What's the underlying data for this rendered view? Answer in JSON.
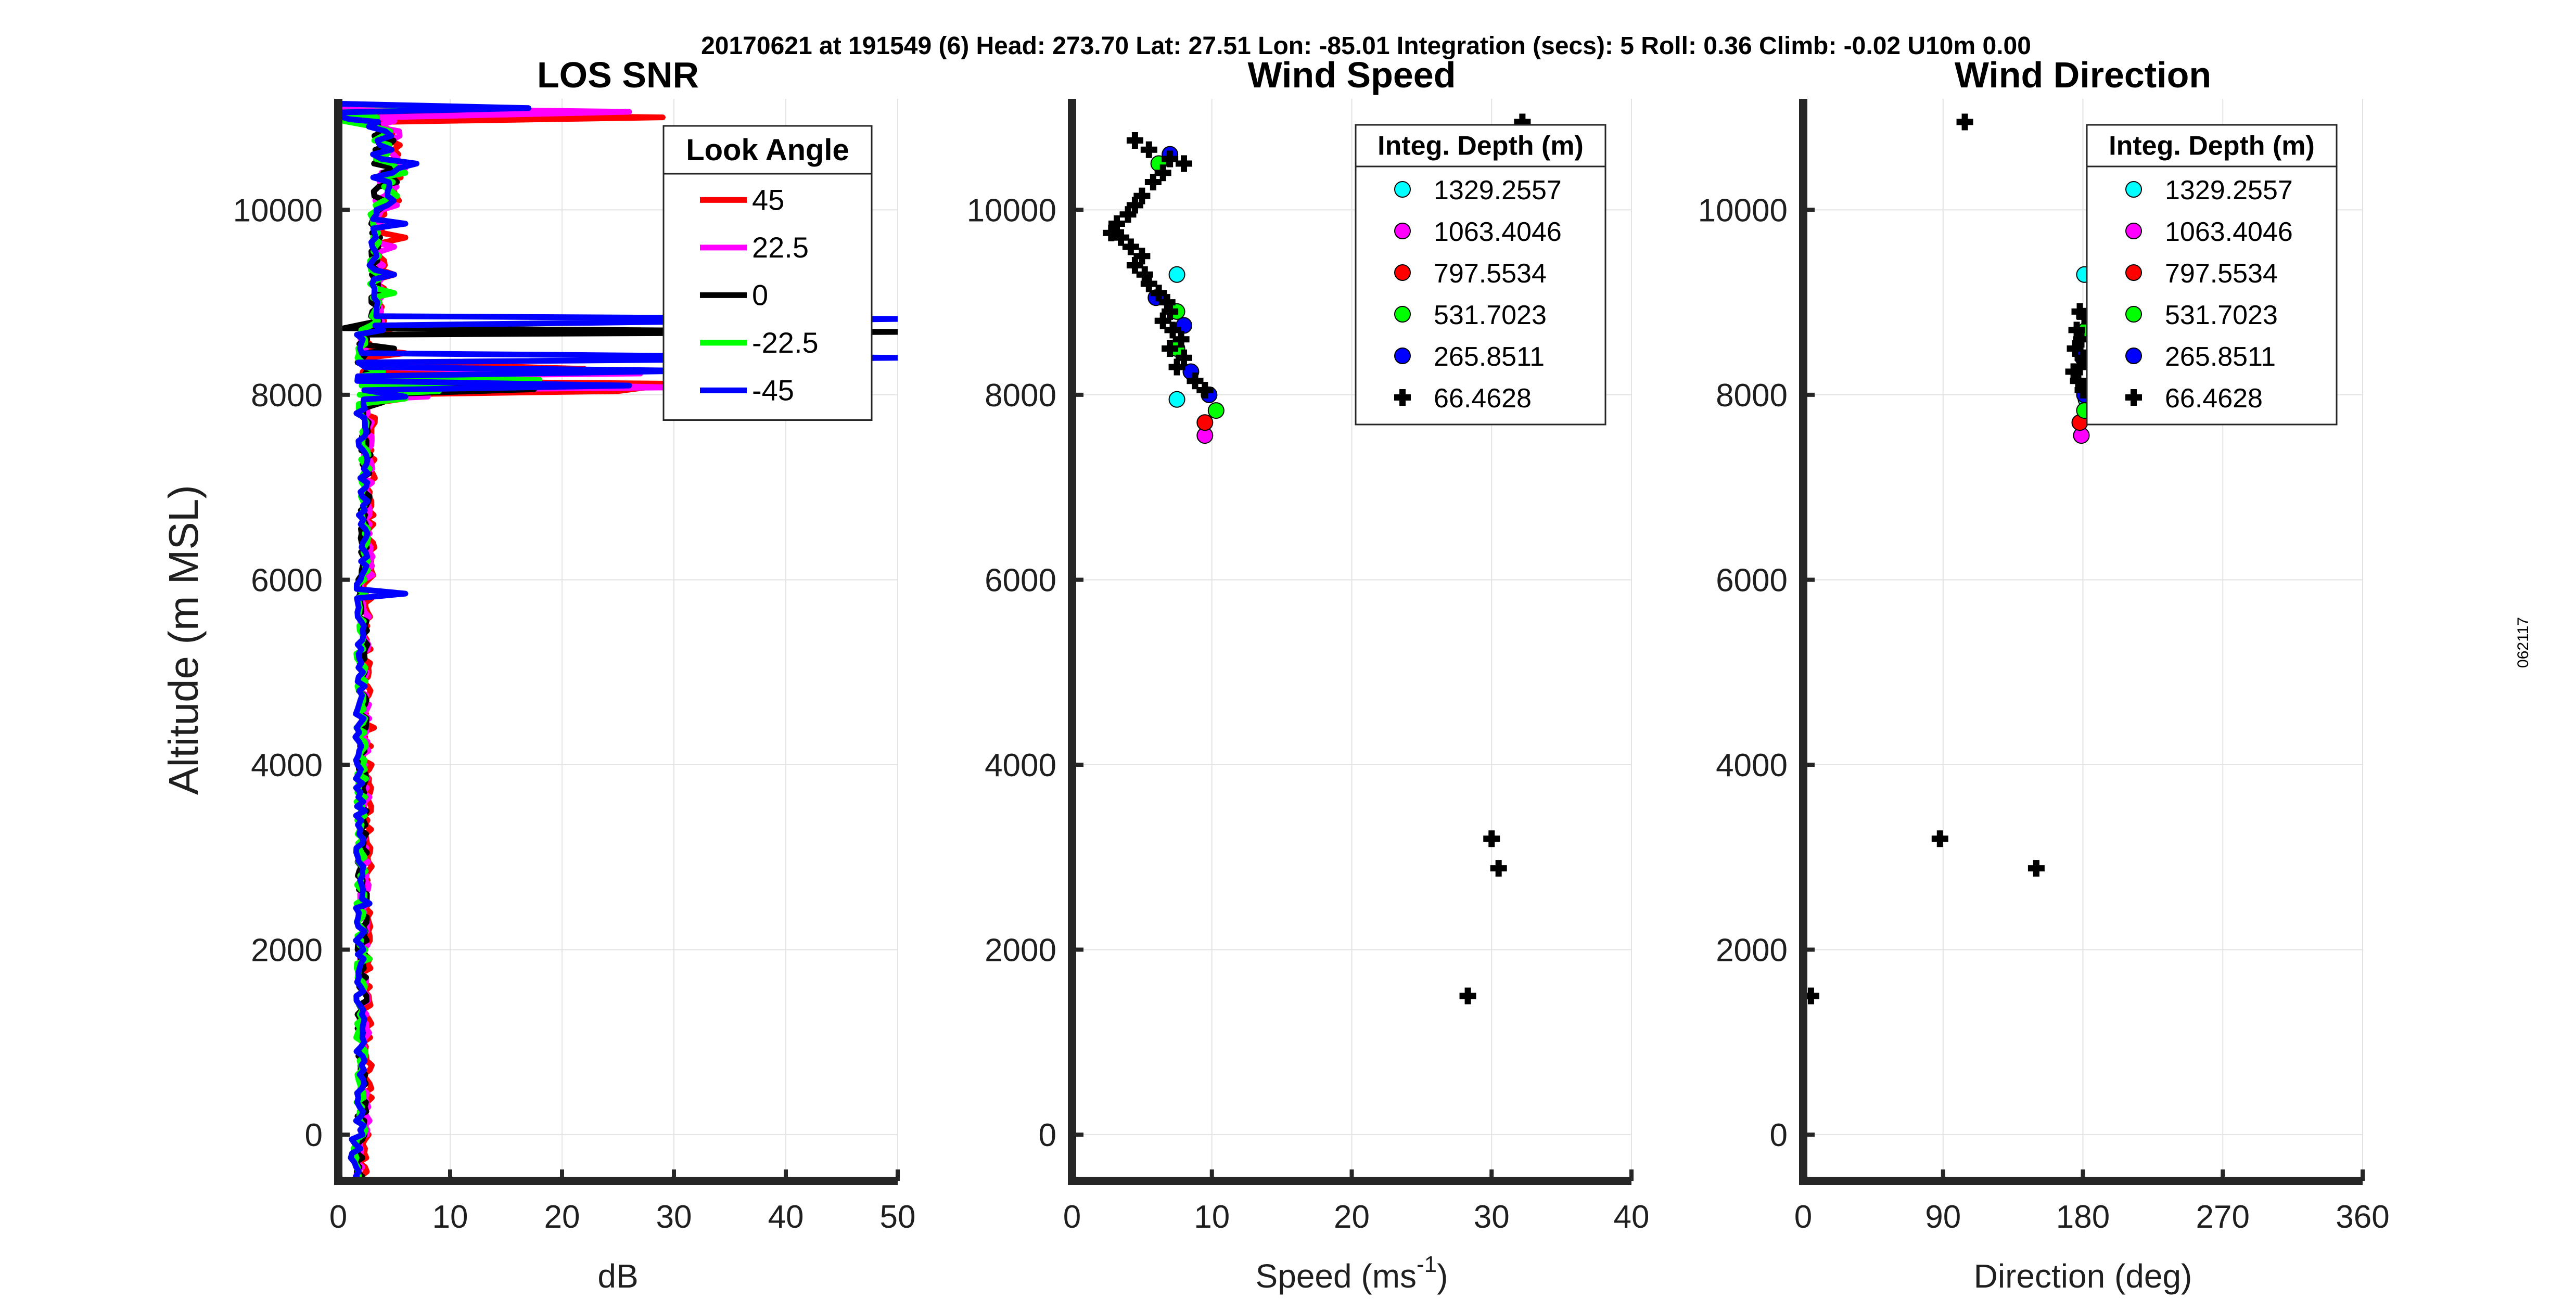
{
  "figure": {
    "suptitle": "20170621 at 191549 (6)  Head: 273.70  Lat: 27.51  Lon: -85.01  Integration (secs): 5  Roll: 0.36  Climb: -0.02  U10m 0.00",
    "side_label": "062117"
  },
  "chart_data": [
    {
      "type": "line",
      "title": "LOS SNR",
      "xlabel": "dB",
      "ylabel": "Altitude (m MSL)",
      "xlim": [
        0,
        50
      ],
      "ylim": [
        -500,
        11200
      ],
      "xticks": [
        0,
        10,
        20,
        30,
        40,
        50
      ],
      "yticks": [
        0,
        2000,
        4000,
        6000,
        8000,
        10000
      ],
      "grid": true,
      "legend": {
        "title": "Look Angle",
        "location": "top-right"
      },
      "series": [
        {
          "name": "45",
          "color": "#ff0000",
          "offset": 0.4,
          "seed": 1,
          "spikes": [
            [
              11000,
              29
            ],
            [
              10900,
              4
            ],
            [
              10200,
              5
            ],
            [
              9700,
              6
            ],
            [
              9300,
              5
            ],
            [
              8720,
              5
            ],
            [
              8450,
              6
            ],
            [
              8280,
              22
            ],
            [
              8120,
              30
            ],
            [
              8040,
              25
            ],
            [
              7960,
              6
            ],
            [
              4400,
              3.2
            ]
          ]
        },
        {
          "name": "22.5",
          "color": "#ff00ff",
          "offset": 0.2,
          "seed": 2,
          "spikes": [
            [
              11060,
              26
            ],
            [
              10960,
              5
            ],
            [
              10450,
              6
            ],
            [
              9600,
              5
            ],
            [
              8760,
              4
            ],
            [
              8230,
              27
            ],
            [
              8080,
              30
            ],
            [
              7980,
              8
            ],
            [
              6200,
              2.8
            ],
            [
              2300,
              2.6
            ]
          ]
        },
        {
          "name": "0",
          "color": "#000000",
          "offset": 0,
          "seed": 3,
          "spikes": [
            [
              10980,
              3
            ],
            [
              10400,
              4
            ],
            [
              9300,
              3
            ],
            [
              8720,
              0.5
            ],
            [
              8680,
              50
            ],
            [
              8500,
              5
            ],
            [
              8150,
              12
            ],
            [
              8060,
              17.5
            ],
            [
              7920,
              4
            ],
            [
              5300,
              2.6
            ]
          ]
        },
        {
          "name": "-22.5",
          "color": "#00ff00",
          "offset": -0.1,
          "seed": 4,
          "spikes": [
            [
              11100,
              15
            ],
            [
              10960,
              0.5
            ],
            [
              10400,
              6
            ],
            [
              9100,
              5
            ],
            [
              8850,
              3
            ],
            [
              8250,
              4
            ],
            [
              8160,
              18
            ],
            [
              8040,
              9
            ],
            [
              7960,
              6
            ],
            [
              1900,
              2.8
            ]
          ]
        },
        {
          "name": "-45",
          "color": "#0000ff",
          "offset": -0.2,
          "seed": 5,
          "spikes": [
            [
              11100,
              17
            ],
            [
              10980,
              1
            ],
            [
              10500,
              7
            ],
            [
              9850,
              6
            ],
            [
              9300,
              5
            ],
            [
              8820,
              50
            ],
            [
              8700,
              4
            ],
            [
              8400,
              50
            ],
            [
              8260,
              32
            ],
            [
              8100,
              26
            ],
            [
              7980,
              6
            ],
            [
              5850,
              6
            ],
            [
              2500,
              2.8
            ]
          ]
        }
      ]
    },
    {
      "type": "scatter",
      "title": "Wind Speed",
      "xlabel": "Speed (ms",
      "xlabel_sup": "-1",
      "xlabel_end": ")",
      "xlim": [
        0,
        40
      ],
      "ylim": [
        -500,
        11200
      ],
      "xticks": [
        0,
        10,
        20,
        30,
        40
      ],
      "yticks": [
        0,
        2000,
        4000,
        6000,
        8000,
        10000
      ],
      "grid": true,
      "legend": {
        "title": "Integ. Depth (m)",
        "location": "top-right"
      },
      "series": [
        {
          "name": "1329.2557",
          "color": "#00ffff",
          "marker": "circle",
          "points": [
            [
              7.5,
              9300
            ],
            [
              7.5,
              7950
            ]
          ]
        },
        {
          "name": "1063.4046",
          "color": "#ff00ff",
          "marker": "circle",
          "points": [
            [
              9.5,
              7560
            ]
          ]
        },
        {
          "name": "797.5534",
          "color": "#ff0000",
          "marker": "circle",
          "points": [
            [
              9.5,
              7700
            ]
          ]
        },
        {
          "name": "531.7023",
          "color": "#00ff00",
          "marker": "circle",
          "points": [
            [
              6.2,
              10500
            ],
            [
              7.5,
              8900
            ],
            [
              7.5,
              8500
            ],
            [
              10.3,
              7830
            ]
          ]
        },
        {
          "name": "265.8511",
          "color": "#0000ff",
          "marker": "circle",
          "points": [
            [
              7.0,
              10600
            ],
            [
              6.0,
              9050
            ],
            [
              8.0,
              8750
            ],
            [
              8.5,
              8250
            ],
            [
              9.8,
              8000
            ]
          ]
        },
        {
          "name": "66.4628",
          "color": "#000000",
          "marker": "cross",
          "points": [
            [
              32.2,
              10950
            ],
            [
              4.5,
              10750
            ],
            [
              5.5,
              10650
            ],
            [
              7.0,
              10550
            ],
            [
              8.0,
              10500
            ],
            [
              6.5,
              10400
            ],
            [
              5.8,
              10300
            ],
            [
              5.0,
              10150
            ],
            [
              4.5,
              10050
            ],
            [
              4.0,
              9950
            ],
            [
              3.2,
              9850
            ],
            [
              2.8,
              9750
            ],
            [
              3.5,
              9700
            ],
            [
              4.2,
              9600
            ],
            [
              5.0,
              9500
            ],
            [
              4.5,
              9400
            ],
            [
              5.2,
              9300
            ],
            [
              5.5,
              9200
            ],
            [
              6.2,
              9100
            ],
            [
              6.8,
              9000
            ],
            [
              7.0,
              8900
            ],
            [
              6.5,
              8800
            ],
            [
              7.2,
              8700
            ],
            [
              7.8,
              8600
            ],
            [
              7.0,
              8500
            ],
            [
              8.0,
              8400
            ],
            [
              7.5,
              8300
            ],
            [
              8.8,
              8150
            ],
            [
              9.5,
              8050
            ],
            [
              30.0,
              3200
            ],
            [
              30.5,
              2880
            ],
            [
              28.3,
              1500
            ]
          ]
        }
      ]
    },
    {
      "type": "scatter",
      "title": "Wind Direction",
      "xlabel": "Direction (deg)",
      "xlim": [
        0,
        360
      ],
      "ylim": [
        -500,
        11200
      ],
      "xticks": [
        0,
        90,
        180,
        270,
        360
      ],
      "yticks": [
        0,
        2000,
        4000,
        6000,
        8000,
        10000
      ],
      "grid": true,
      "legend": {
        "title": "Integ. Depth (m)",
        "location": "top-right"
      },
      "series": [
        {
          "name": "1329.2557",
          "color": "#00ffff",
          "marker": "circle",
          "points": [
            [
              181,
              9300
            ],
            [
              182,
              7950
            ]
          ]
        },
        {
          "name": "1063.4046",
          "color": "#ff00ff",
          "marker": "circle",
          "points": [
            [
              179,
              7560
            ]
          ]
        },
        {
          "name": "797.5534",
          "color": "#ff0000",
          "marker": "circle",
          "points": [
            [
              178,
              7700
            ]
          ]
        },
        {
          "name": "531.7023",
          "color": "#00ff00",
          "marker": "circle",
          "points": [
            [
              182,
              8700
            ],
            [
              181,
              7830
            ]
          ]
        },
        {
          "name": "265.8511",
          "color": "#0000ff",
          "marker": "circle",
          "points": [
            [
              180,
              8400
            ],
            [
              181,
              8000
            ]
          ]
        },
        {
          "name": "66.4628",
          "color": "#000000",
          "marker": "cross",
          "points": [
            [
              104,
              10950
            ],
            [
              178,
              8900
            ],
            [
              181,
              8850
            ],
            [
              176,
              8700
            ],
            [
              179,
              8600
            ],
            [
              175,
              8500
            ],
            [
              180,
              8400
            ],
            [
              178,
              8300
            ],
            [
              174,
              8250
            ],
            [
              177,
              8150
            ],
            [
              180,
              8050
            ],
            [
              88,
              3200
            ],
            [
              150,
              2880
            ],
            [
              5,
              1500
            ]
          ]
        }
      ]
    }
  ]
}
